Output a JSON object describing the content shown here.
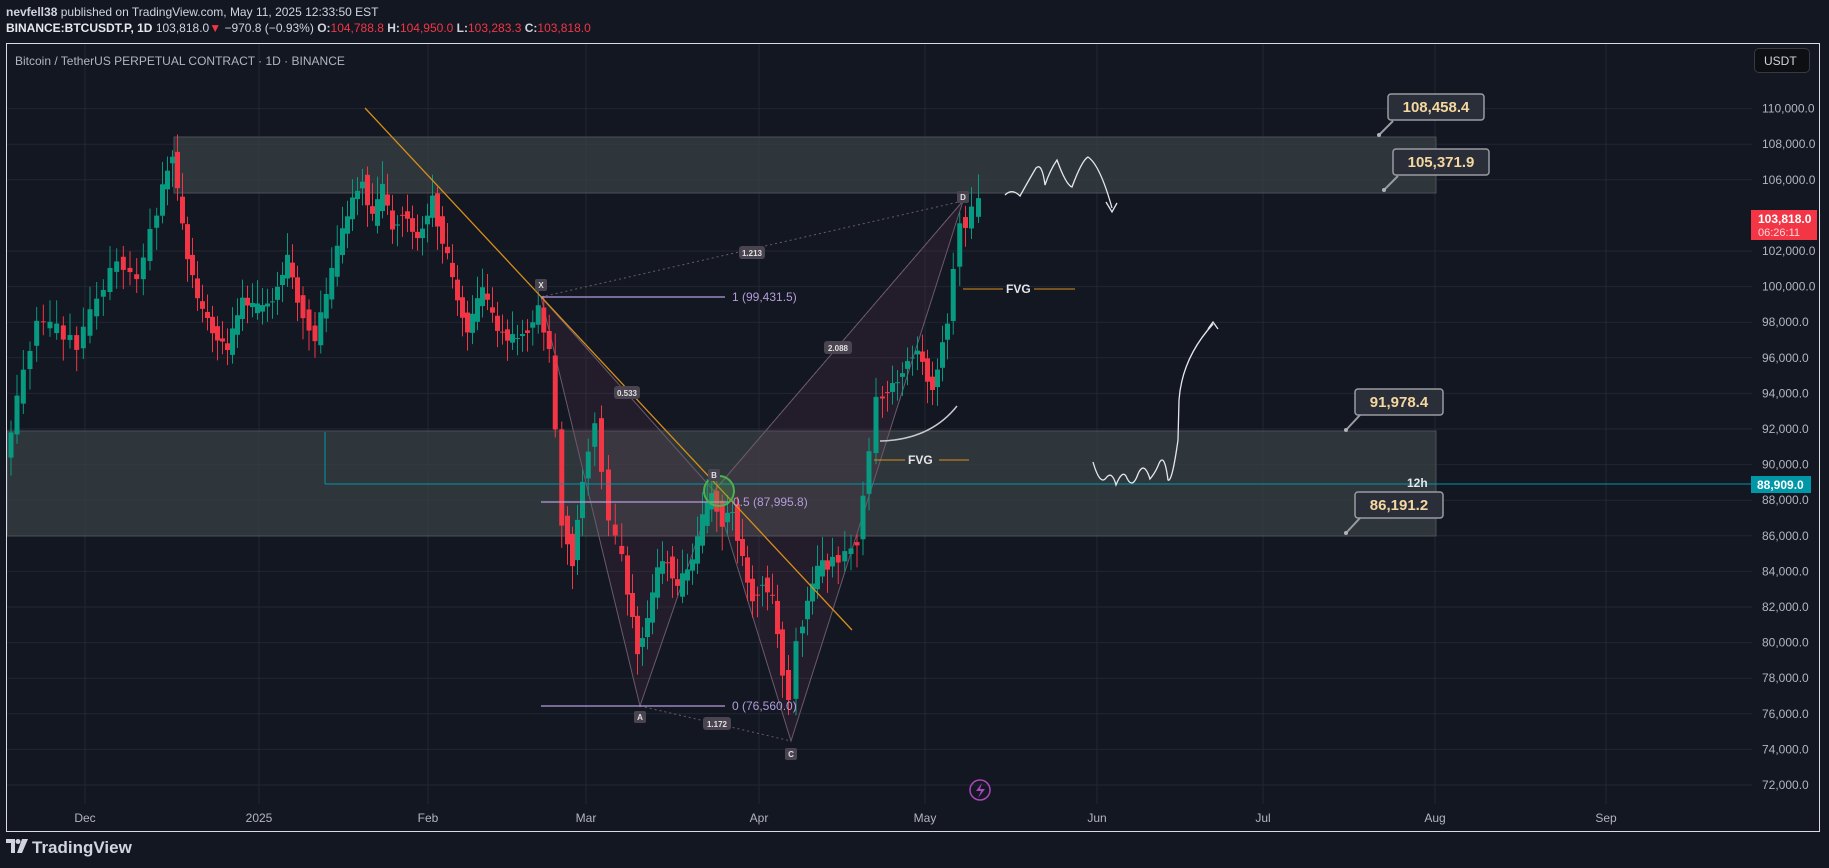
{
  "header": {
    "author": "nevfell38",
    "published_text": "published on TradingView.com, May 11, 2025 12:33:50 EST",
    "symbol": "BINANCE:BTCUSDT.P, 1D",
    "last": "103,818.0",
    "change_arrow": "▼",
    "change": "−970.8 (−0.93%)",
    "o_label": "O:",
    "o": "104,788.8",
    "h_label": "H:",
    "h": "104,950.0",
    "l_label": "L:",
    "l": "103,283.3",
    "c_label": "C:",
    "c": "103,818.0"
  },
  "chart_title": "Bitcoin / TetherUS PERPETUAL CONTRACT · 1D · BINANCE",
  "currency_button": "USDT",
  "footer": {
    "logo_mark": "𝟏𝟕",
    "logo_text": "TradingView"
  },
  "colors": {
    "background": "#131722",
    "up": "#089981",
    "down": "#f23645",
    "trendline": "#d88e1a",
    "fib": "#b39ddb",
    "current_price_bg": "#f23645",
    "line_88909": "#0097a7",
    "zone": "#363c3f",
    "circle": "#4caf50",
    "lightning": "#ab47bc"
  },
  "chart_data": {
    "type": "candlestick",
    "title": "Bitcoin / TetherUS PERPETUAL CONTRACT · 1D · BINANCE",
    "xlabel": "",
    "ylabel": "USDT",
    "ylim": [
      71000,
      112000
    ],
    "y_ticks": [
      "110,000.0",
      "108,000.0",
      "106,000.0",
      "102,000.0",
      "100,000.0",
      "98,000.0",
      "96,000.0",
      "94,000.0",
      "92,000.0",
      "90,000.0",
      "88,000.0",
      "86,000.0",
      "84,000.0",
      "82,000.0",
      "80,000.0",
      "78,000.0",
      "76,000.0",
      "74,000.0",
      "72,000.0"
    ],
    "x_ticks": [
      "Dec",
      "2025",
      "Feb",
      "Mar",
      "Apr",
      "May",
      "Jun",
      "Jul",
      "Aug",
      "Sep"
    ],
    "price_labels": {
      "current": {
        "value": "103,818.0",
        "countdown": "06:26:11"
      },
      "line": {
        "value": "88,909.0",
        "tag": "12h"
      }
    },
    "zones": [
      {
        "name": "resistance",
        "top": "108,458.4",
        "bottom": "105,371.9"
      },
      {
        "name": "support",
        "top": "91,978.4",
        "bottom": "86,191.2"
      }
    ],
    "harmonic_pattern": {
      "points": [
        "X",
        "A",
        "B",
        "C",
        "D"
      ],
      "ratios": [
        "0.533",
        "1.172",
        "2.088",
        "1.213"
      ]
    },
    "fib_levels": [
      {
        "label": "1 (99,431.5)"
      },
      {
        "label": "0.5 (87,995.8)"
      },
      {
        "label": "0 (76,560.0)"
      }
    ],
    "annotations": [
      "FVG",
      "FVG"
    ],
    "grid": true
  }
}
